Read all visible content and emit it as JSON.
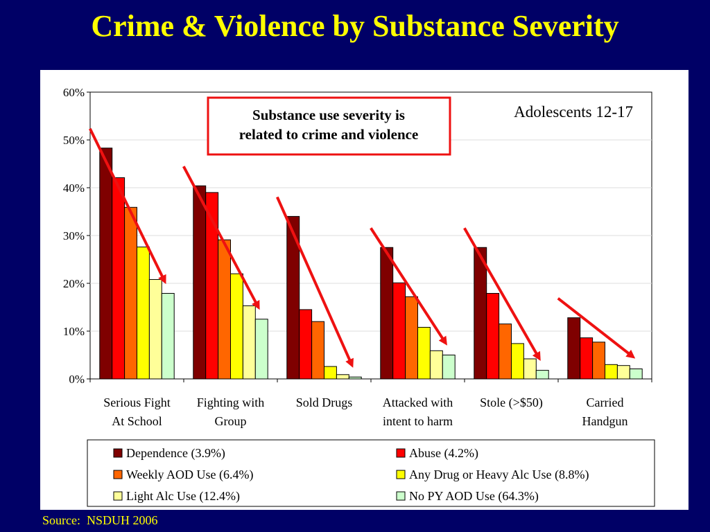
{
  "slide": {
    "title": "Crime & Violence by Substance Severity",
    "source": "Source:  NSDUH 2006"
  },
  "colors": {
    "background": "#000066",
    "title": "#ffff00",
    "arrow": "#ee1111",
    "callout_border": "#ee1111"
  },
  "chart_data": {
    "type": "bar",
    "title": "",
    "xlabel": "",
    "ylabel": "",
    "ylim": [
      0,
      60
    ],
    "y_ticks": [
      "0%",
      "10%",
      "20%",
      "30%",
      "40%",
      "50%",
      "60%"
    ],
    "y_tick_values": [
      0,
      10,
      20,
      30,
      40,
      50,
      60
    ],
    "grid": true,
    "legend_placement": "bottom",
    "categories": [
      [
        "Serious Fight",
        "At School"
      ],
      [
        "Fighting with",
        "Group"
      ],
      [
        "Sold Drugs"
      ],
      [
        "Attacked with",
        "intent to harm"
      ],
      [
        "Stole (>$50)"
      ],
      [
        "Carried",
        "Handgun"
      ]
    ],
    "series": [
      {
        "name": "Dependence (3.9%)",
        "color": "#7f0000",
        "values": [
          48.3,
          40.4,
          34.0,
          27.5,
          27.5,
          12.8
        ]
      },
      {
        "name": "Abuse (4.2%)",
        "color": "#ff0000",
        "values": [
          42.1,
          39.0,
          14.5,
          20.1,
          17.9,
          8.6
        ]
      },
      {
        "name": "Weekly AOD Use (6.4%)",
        "color": "#ff6600",
        "values": [
          35.9,
          29.1,
          12.0,
          17.2,
          11.5,
          7.7
        ]
      },
      {
        "name": "Any Drug or Heavy Alc Use (8.8%)",
        "color": "#ffff00",
        "values": [
          27.6,
          22.0,
          2.6,
          10.8,
          7.4,
          3.0
        ]
      },
      {
        "name": "Light Alc Use (12.4%)",
        "color": "#ffff99",
        "values": [
          20.8,
          15.3,
          0.9,
          5.9,
          4.2,
          2.8
        ]
      },
      {
        "name": "No PY AOD Use (64.3%)",
        "color": "#ccffcc",
        "values": [
          17.9,
          12.5,
          0.4,
          5.0,
          1.8,
          2.1
        ]
      }
    ],
    "annotations": {
      "callout": [
        "Substance use severity is",
        "related to crime and violence"
      ],
      "subtitle": "Adolescents 12-17"
    }
  }
}
